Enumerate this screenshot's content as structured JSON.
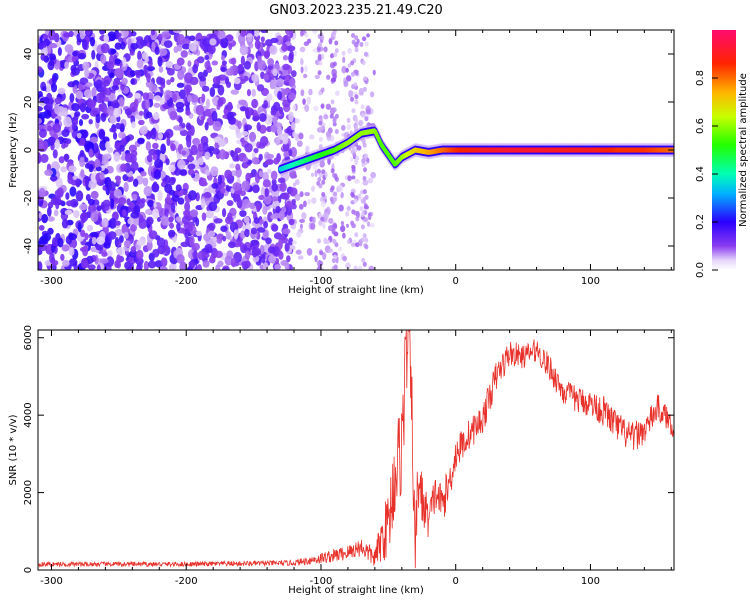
{
  "title": "GN03.2023.235.21.49.C20",
  "chart_data": [
    {
      "type": "heatmap",
      "xlabel": "Height of straight line (km)",
      "ylabel": "Frequency (Hz)",
      "xlim": [
        -310,
        162
      ],
      "ylim": [
        -50,
        50
      ],
      "xticks": [
        -300,
        -200,
        -100,
        0,
        100
      ],
      "yticks": [
        -40,
        -20,
        0,
        20,
        40
      ],
      "noise_region_x": [
        -310,
        -120
      ],
      "sparse_noise_columns_x": [
        -100,
        -90,
        -75,
        -68
      ],
      "ridge": {
        "x": [
          -130,
          -120,
          -110,
          -100,
          -90,
          -80,
          -70,
          -60,
          -55,
          -50,
          -45,
          -40,
          -30,
          -20,
          -10,
          0,
          20,
          40,
          60,
          80,
          100,
          120,
          140,
          162
        ],
        "freq": [
          -8,
          -6,
          -4,
          -2,
          0,
          3,
          7,
          8,
          2,
          -2,
          -6,
          -3,
          0,
          -1,
          0,
          0,
          0,
          0,
          0,
          0,
          0,
          0,
          0,
          0
        ],
        "amplitude": [
          0.35,
          0.4,
          0.45,
          0.5,
          0.55,
          0.6,
          0.6,
          0.6,
          0.55,
          0.55,
          0.55,
          0.6,
          0.7,
          0.75,
          0.8,
          0.85,
          0.9,
          0.92,
          0.92,
          0.9,
          0.9,
          0.85,
          0.85,
          0.8
        ]
      },
      "colorbar": {
        "label": "Normalized spectral amplitude",
        "range": [
          0.0,
          1.0
        ],
        "ticks": [
          "0.0",
          "0.2",
          "0.4",
          "0.6",
          "0.8"
        ]
      }
    },
    {
      "type": "line",
      "xlabel": "Height of straight line (km)",
      "ylabel": "SNR (10 * v/v)",
      "xlim": [
        -310,
        162
      ],
      "ylim": [
        0,
        6200
      ],
      "xticks": [
        -300,
        -200,
        -100,
        0,
        100
      ],
      "yticks": [
        0,
        2000,
        4000,
        6000
      ],
      "series": [
        {
          "color": "#e8312a",
          "x": [
            -310,
            -200,
            -120,
            -100,
            -80,
            -70,
            -60,
            -55,
            -50,
            -45,
            -40,
            -38,
            -35,
            -32,
            -30,
            -28,
            -25,
            -20,
            -15,
            -10,
            -5,
            0,
            10,
            20,
            30,
            40,
            50,
            60,
            70,
            80,
            90,
            100,
            110,
            120,
            130,
            140,
            150,
            162
          ],
          "y": [
            150,
            150,
            180,
            300,
            450,
            600,
            300,
            800,
            1200,
            2500,
            3200,
            4800,
            6200,
            3500,
            200,
            2500,
            1800,
            1300,
            2000,
            1700,
            2200,
            3000,
            3500,
            3900,
            5000,
            5600,
            5500,
            5700,
            5200,
            4600,
            4400,
            4300,
            4100,
            3700,
            3400,
            3600,
            4200,
            3700
          ],
          "noise_amp": [
            60,
            60,
            70,
            150,
            200,
            250,
            250,
            600,
            900,
            1200,
            1300,
            1400,
            800,
            1200,
            800,
            1200,
            700,
            500,
            500,
            500,
            500,
            450,
            400,
            400,
            400,
            350,
            300,
            300,
            350,
            350,
            350,
            350,
            400,
            400,
            400,
            350,
            350,
            300
          ]
        }
      ]
    }
  ]
}
